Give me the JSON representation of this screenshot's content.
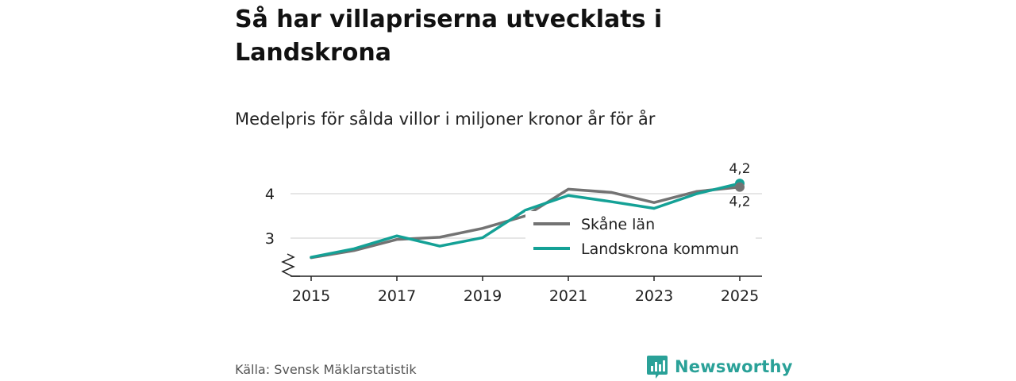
{
  "title": "Så har villapriserna utvecklats i Landskrona",
  "subtitle": "Medelpris för sålda villor i miljoner kronor år för år",
  "source": "Källa: Svensk Mäklarstatistik",
  "brand": {
    "name": "Newsworthy",
    "icon": "newsworthy-logo-icon",
    "color": "#2aa198"
  },
  "chart_data": {
    "type": "line",
    "title": "Så har villapriserna utvecklats i Landskrona",
    "subtitle": "Medelpris för sålda villor i miljoner kronor år för år",
    "xlabel": "",
    "ylabel": "",
    "x": [
      2015,
      2016,
      2017,
      2018,
      2019,
      2020,
      2021,
      2022,
      2023,
      2024,
      2025
    ],
    "x_tick_labels": [
      "2015",
      "2017",
      "2019",
      "2021",
      "2023",
      "2025"
    ],
    "y_tick_labels": [
      "3",
      "4"
    ],
    "y_ticks": [
      3,
      4
    ],
    "ylim": [
      2.2,
      4.5
    ],
    "xlim": [
      2015,
      2025.5
    ],
    "grid": true,
    "axis_break": true,
    "legend_position": "right-middle",
    "series": [
      {
        "name": "Skåne län",
        "color": "#737373",
        "values": [
          2.56,
          2.72,
          2.97,
          3.02,
          3.22,
          3.5,
          4.1,
          4.03,
          3.8,
          4.05,
          4.15
        ],
        "end_label": "4,2"
      },
      {
        "name": "Landskrona kommun",
        "color": "#14a196",
        "values": [
          2.57,
          2.76,
          3.05,
          2.82,
          3.01,
          3.63,
          3.96,
          3.82,
          3.67,
          4.0,
          4.23
        ],
        "end_label": "4,2"
      }
    ]
  }
}
